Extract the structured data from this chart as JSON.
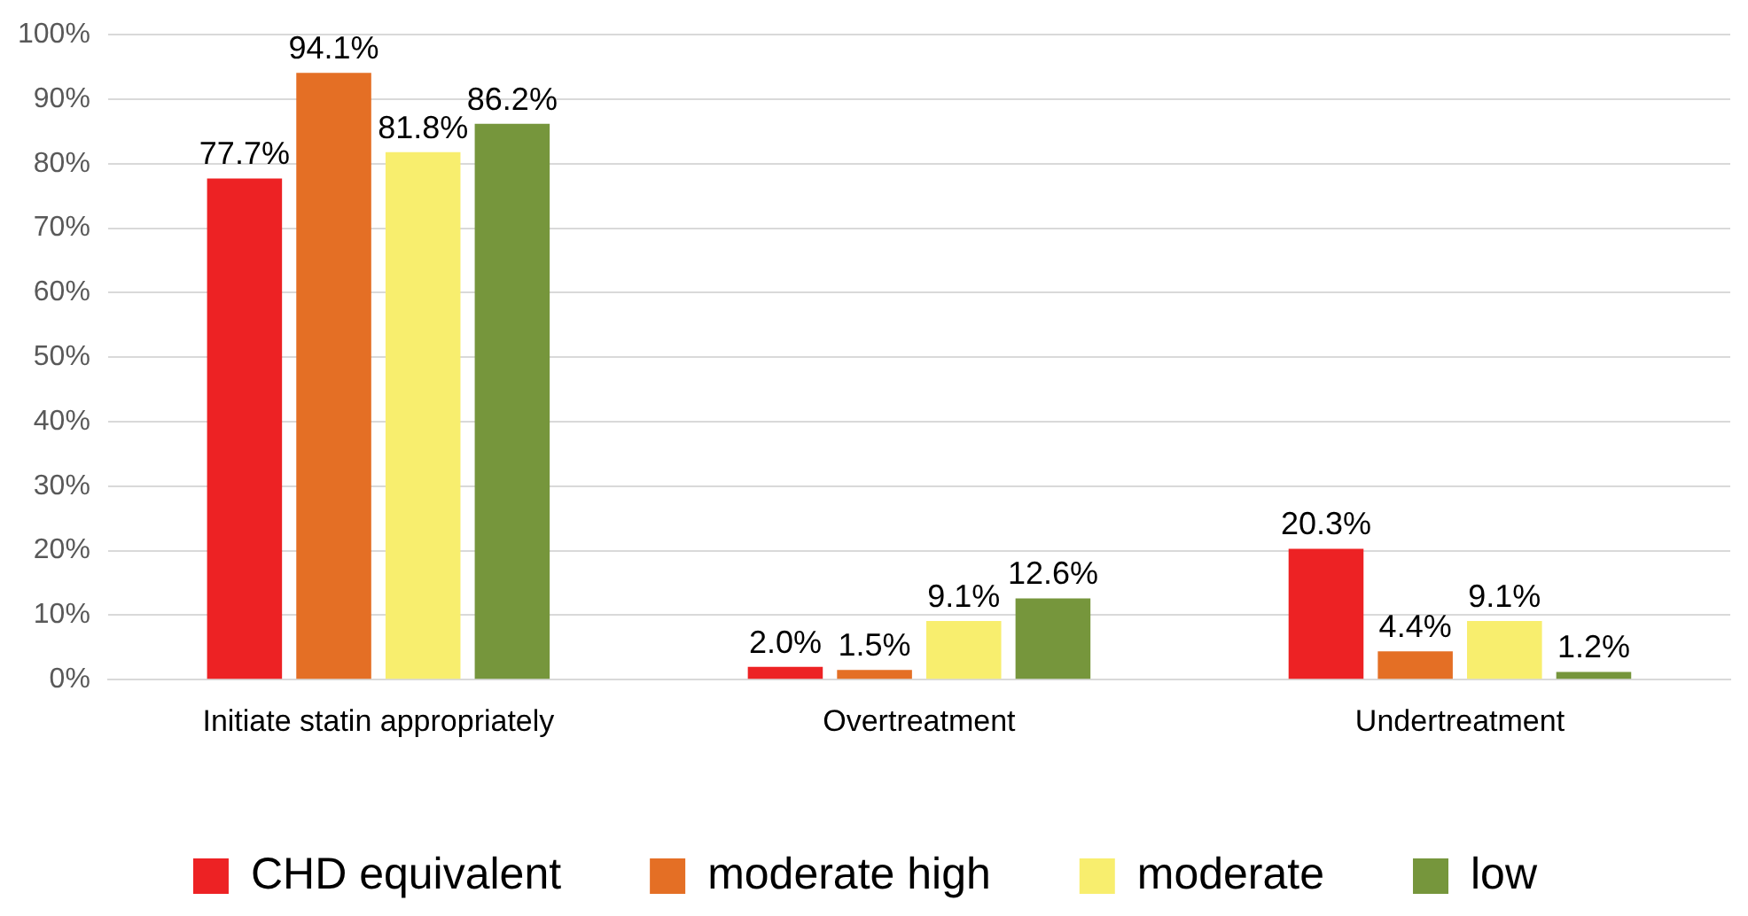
{
  "chart_data": {
    "type": "bar",
    "categories": [
      "Initiate statin appropriately",
      "Overtreatment",
      "Undertreatment"
    ],
    "series": [
      {
        "name": "CHD equivalent",
        "color": "#ed2224",
        "values": [
          77.7,
          2.0,
          20.3
        ],
        "value_labels": [
          "77.7%",
          "2.0%",
          "20.3%"
        ]
      },
      {
        "name": "moderate high",
        "color": "#e46f25",
        "values": [
          94.1,
          1.5,
          4.4
        ],
        "value_labels": [
          "94.1%",
          "1.5%",
          "4.4%"
        ]
      },
      {
        "name": "moderate",
        "color": "#f8ee6e",
        "values": [
          81.8,
          9.1,
          9.1
        ],
        "value_labels": [
          "81.8%",
          "9.1%",
          "9.1%"
        ]
      },
      {
        "name": "low",
        "color": "#76963c",
        "values": [
          86.2,
          12.6,
          1.2
        ],
        "value_labels": [
          "86.2%",
          "12.6%",
          "1.2%"
        ]
      }
    ],
    "ylim": [
      0,
      100
    ],
    "yticks": [
      {
        "value": 0,
        "label": "0%"
      },
      {
        "value": 10,
        "label": "10%"
      },
      {
        "value": 20,
        "label": "20%"
      },
      {
        "value": 30,
        "label": "30%"
      },
      {
        "value": 40,
        "label": "40%"
      },
      {
        "value": 50,
        "label": "50%"
      },
      {
        "value": 60,
        "label": "60%"
      },
      {
        "value": 70,
        "label": "70%"
      },
      {
        "value": 80,
        "label": "80%"
      },
      {
        "value": 90,
        "label": "90%"
      },
      {
        "value": 100,
        "label": "100%"
      }
    ],
    "grid": "y",
    "legend": "bottom"
  }
}
